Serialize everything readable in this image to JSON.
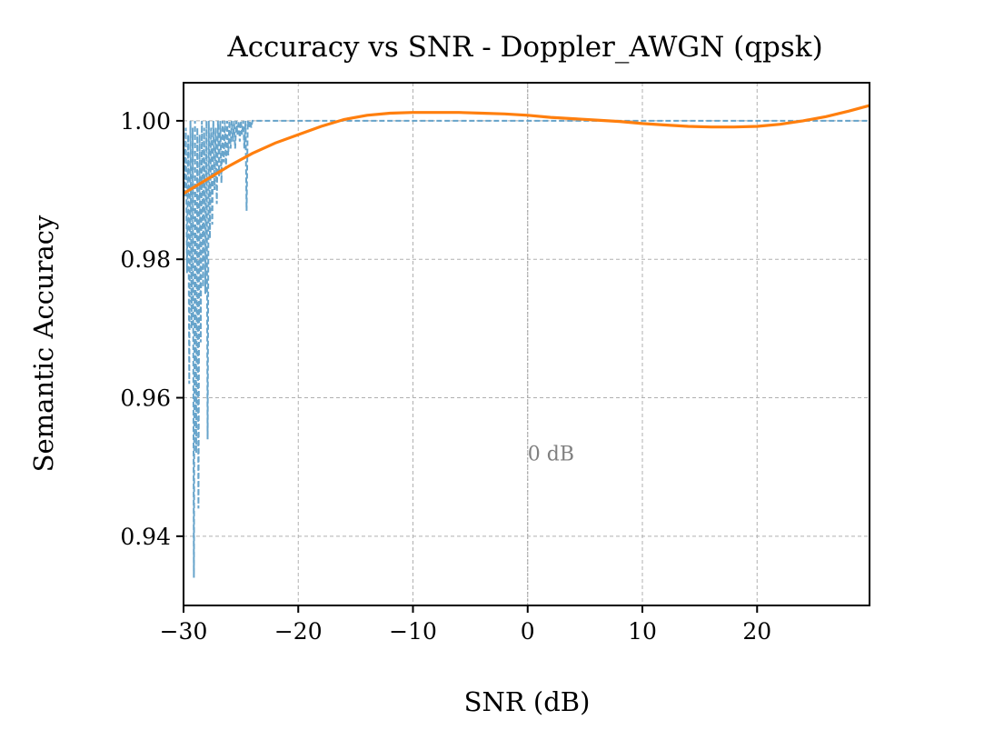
{
  "chart_data": {
    "type": "line",
    "title": "Accuracy vs SNR - Doppler_AWGN (qpsk)",
    "xlabel": "SNR (dB)",
    "ylabel": "Semantic Accuracy",
    "xlim": [
      -30,
      29.8
    ],
    "ylim": [
      0.93,
      1.0055
    ],
    "xticks": [
      -30,
      -20,
      -10,
      0,
      10,
      20
    ],
    "xtick_labels": [
      "−30",
      "−20",
      "−10",
      "0",
      "10",
      "20"
    ],
    "yticks": [
      0.94,
      0.96,
      0.98,
      1.0
    ],
    "ytick_labels": [
      "0.94",
      "0.96",
      "0.98",
      "1.00"
    ],
    "grid": true,
    "legend": "none",
    "annotation": {
      "text": "0 dB",
      "x": 0,
      "y": 0.952
    },
    "vline_x": 0,
    "series": [
      {
        "style": "dashed",
        "color": "#5f9fc8",
        "x": [
          -30.0,
          -29.9,
          -29.8,
          -29.7,
          -29.6,
          -29.5,
          -29.4,
          -29.3,
          -29.2,
          -29.1,
          -29.0,
          -28.9,
          -28.8,
          -28.7,
          -28.6,
          -28.5,
          -28.4,
          -28.3,
          -28.2,
          -28.1,
          -28.0,
          -27.9,
          -27.8,
          -27.7,
          -27.6,
          -27.5,
          -27.4,
          -27.3,
          -27.2,
          -27.1,
          -27.0,
          -26.9,
          -26.8,
          -26.7,
          -26.6,
          -26.5,
          -26.4,
          -26.3,
          -26.2,
          -26.1,
          -26.0,
          -25.9,
          -25.8,
          -25.7,
          -25.6,
          -25.5,
          -25.4,
          -25.3,
          -25.2,
          -25.1,
          -25.0,
          -24.9,
          -24.8,
          -24.7,
          -24.6,
          -24.5,
          -24.4,
          -24.3,
          -24.2,
          -24.1,
          -24.0,
          -23.8,
          -23.6,
          -23.4,
          -23.2,
          -23.0,
          -20.0,
          -10.0,
          0.0,
          10.0,
          20.0,
          29.8
        ],
        "y": [
          0.997,
          0.989,
          0.999,
          0.978,
          0.998,
          0.962,
          1.0,
          0.97,
          0.999,
          0.934,
          1.0,
          0.952,
          0.999,
          0.944,
          0.998,
          0.968,
          1.0,
          0.976,
          0.999,
          0.975,
          1.0,
          0.954,
          1.0,
          0.983,
          0.999,
          0.985,
          1.0,
          0.99,
          0.999,
          0.988,
          1.0,
          0.992,
          1.0,
          0.991,
          1.0,
          0.994,
          1.0,
          0.993,
          1.0,
          0.995,
          1.0,
          0.996,
          1.0,
          0.997,
          1.0,
          0.996,
          1.0,
          0.998,
          1.0,
          0.997,
          1.0,
          0.998,
          1.0,
          0.996,
          1.0,
          0.987,
          1.0,
          0.999,
          1.0,
          0.999,
          1.0,
          1.0,
          1.0,
          1.0,
          1.0,
          1.0,
          1.0,
          1.0,
          1.0,
          1.0,
          1.0,
          1.0
        ]
      },
      {
        "style": "solid",
        "color": "#ff7f0e",
        "x": [
          -30,
          -28,
          -26,
          -24,
          -22,
          -20,
          -18,
          -16,
          -14,
          -12,
          -10,
          -8,
          -6,
          -4,
          -2,
          0,
          2,
          4,
          6,
          8,
          10,
          12,
          14,
          16,
          18,
          20,
          22,
          24,
          26,
          28,
          29.8
        ],
        "y": [
          0.9895,
          0.9915,
          0.9935,
          0.9953,
          0.9968,
          0.998,
          0.9992,
          1.0002,
          1.0008,
          1.0011,
          1.0012,
          1.0012,
          1.0012,
          1.0011,
          1.001,
          1.0008,
          1.0005,
          1.0003,
          1.0001,
          0.9999,
          0.9996,
          0.9994,
          0.9992,
          0.9991,
          0.9991,
          0.9992,
          0.9995,
          1.0,
          1.0006,
          1.0014,
          1.0022
        ]
      }
    ]
  }
}
